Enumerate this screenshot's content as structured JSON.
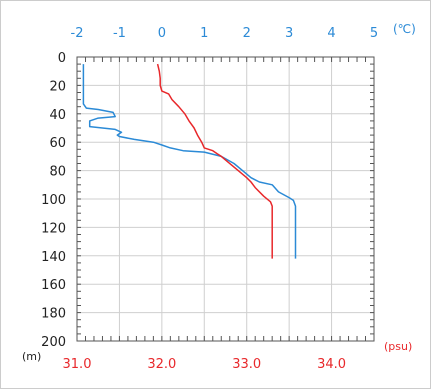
{
  "chart_data": {
    "type": "line",
    "title": "",
    "top_axis": {
      "unit": "(℃)",
      "min": -2,
      "max": 5,
      "ticks": [
        -2,
        -1,
        0,
        1,
        2,
        3,
        4,
        5
      ],
      "tick_labels": [
        "-2",
        "-1",
        "0",
        "1",
        "2",
        "3",
        "4",
        "5"
      ],
      "color": "#2b8ad6"
    },
    "bottom_axis": {
      "unit": "(psu)",
      "min": 31.0,
      "max": 34.5,
      "ticks": [
        31.0,
        32.0,
        33.0,
        34.0
      ],
      "tick_labels": [
        "31.0",
        "32.0",
        "33.0",
        "34.0"
      ],
      "color": "#e8282b"
    },
    "y_axis": {
      "unit": "(m)",
      "min": 0,
      "max": 200,
      "inverted": true,
      "ticks": [
        0,
        20,
        40,
        60,
        80,
        100,
        120,
        140,
        160,
        180,
        200
      ],
      "tick_labels": [
        "0",
        "20",
        "40",
        "60",
        "80",
        "100",
        "120",
        "140",
        "160",
        "180",
        "200"
      ]
    },
    "grid": true,
    "series": [
      {
        "axis": "top",
        "color": "#2b8ad6",
        "points": [
          [
            -1.85,
            5
          ],
          [
            -1.85,
            15
          ],
          [
            -1.85,
            25
          ],
          [
            -1.85,
            33
          ],
          [
            -1.78,
            36
          ],
          [
            -1.5,
            37
          ],
          [
            -1.15,
            39
          ],
          [
            -1.1,
            42
          ],
          [
            -1.5,
            43
          ],
          [
            -1.7,
            45
          ],
          [
            -1.7,
            49
          ],
          [
            -1.4,
            50
          ],
          [
            -1.1,
            51
          ],
          [
            -0.95,
            53
          ],
          [
            -1.05,
            55
          ],
          [
            -1.0,
            56
          ],
          [
            -0.65,
            58
          ],
          [
            -0.2,
            60
          ],
          [
            0.0,
            62
          ],
          [
            0.2,
            64
          ],
          [
            0.5,
            66
          ],
          [
            1.0,
            67
          ],
          [
            1.4,
            70
          ],
          [
            1.7,
            75
          ],
          [
            1.9,
            80
          ],
          [
            2.1,
            85
          ],
          [
            2.3,
            88
          ],
          [
            2.6,
            90
          ],
          [
            2.75,
            95
          ],
          [
            3.0,
            99
          ],
          [
            3.1,
            101
          ],
          [
            3.15,
            105
          ],
          [
            3.15,
            120
          ],
          [
            3.15,
            142
          ]
        ]
      },
      {
        "axis": "bottom",
        "color": "#e8282b",
        "points": [
          [
            31.95,
            5
          ],
          [
            31.97,
            10
          ],
          [
            31.98,
            15
          ],
          [
            31.98,
            20
          ],
          [
            32.0,
            24
          ],
          [
            32.08,
            26
          ],
          [
            32.12,
            30
          ],
          [
            32.2,
            35
          ],
          [
            32.27,
            40
          ],
          [
            32.32,
            45
          ],
          [
            32.38,
            50
          ],
          [
            32.42,
            55
          ],
          [
            32.47,
            60
          ],
          [
            32.5,
            64
          ],
          [
            32.6,
            66
          ],
          [
            32.65,
            68
          ],
          [
            32.7,
            70
          ],
          [
            32.78,
            74
          ],
          [
            32.9,
            80
          ],
          [
            33.0,
            85
          ],
          [
            33.05,
            88
          ],
          [
            33.1,
            92
          ],
          [
            33.2,
            98
          ],
          [
            33.28,
            102
          ],
          [
            33.3,
            105
          ],
          [
            33.3,
            120
          ],
          [
            33.3,
            142
          ]
        ]
      }
    ]
  }
}
